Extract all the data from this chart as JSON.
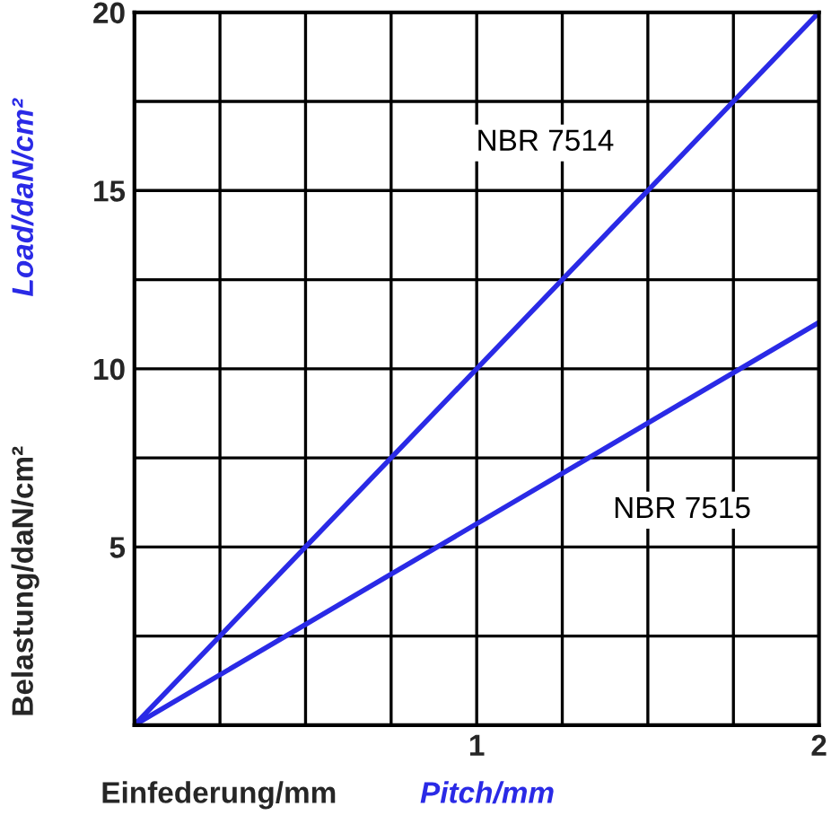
{
  "chart_data": {
    "type": "line",
    "xlabel": "Einfederung/mm",
    "ylabel": "Belastung/daN/cm²",
    "annotations": [
      "Load/daN/cm²",
      "Pitch/mm"
    ],
    "x": [
      0,
      2
    ],
    "series": [
      {
        "name": "NBR 7514",
        "color": "#2a2ae6",
        "values": [
          0,
          20
        ]
      },
      {
        "name": "NBR 7515",
        "color": "#2a2ae6",
        "values": [
          0,
          11.3
        ]
      }
    ],
    "xlim": [
      0,
      2
    ],
    "ylim": [
      0,
      20
    ],
    "xticks": [
      {
        "value": 0,
        "label": null
      },
      {
        "value": 0.25,
        "label": null
      },
      {
        "value": 0.5,
        "label": null
      },
      {
        "value": 0.75,
        "label": null
      },
      1,
      {
        "value": 1.25,
        "label": null
      },
      {
        "value": 1.5,
        "label": null
      },
      {
        "value": 1.75,
        "label": null
      },
      2
    ],
    "yticks": [
      {
        "value": 0,
        "label": null
      },
      {
        "value": 2.5,
        "label": null
      },
      5,
      {
        "value": 7.5,
        "label": null
      },
      10,
      {
        "value": 12.5,
        "label": null
      },
      15,
      {
        "value": 17.5,
        "label": null
      },
      20
    ],
    "grid": true,
    "legend": false,
    "marker": "none",
    "line_style": "solid"
  }
}
